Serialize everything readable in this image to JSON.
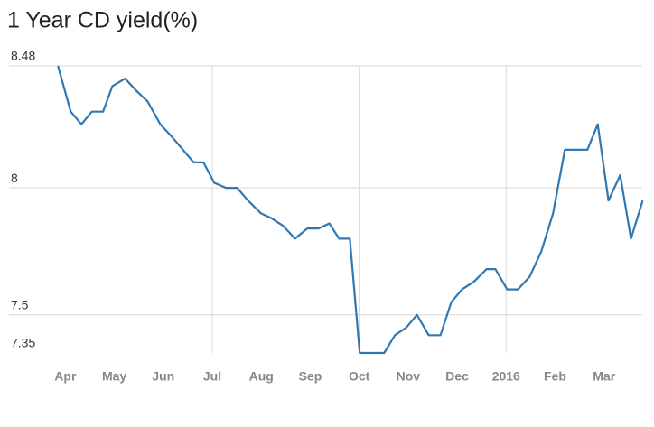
{
  "chart_data": {
    "type": "line",
    "title": "1 Year CD yield(%)",
    "x": [
      -0.15,
      0.11,
      0.33,
      0.54,
      0.77,
      0.96,
      1.22,
      1.46,
      1.68,
      1.94,
      2.18,
      2.4,
      2.62,
      2.82,
      3.04,
      3.28,
      3.51,
      3.73,
      3.99,
      4.21,
      4.45,
      4.69,
      4.94,
      5.17,
      5.39,
      5.59,
      5.81,
      6.01,
      6.25,
      6.51,
      6.73,
      6.96,
      7.18,
      7.42,
      7.66,
      7.88,
      8.1,
      8.34,
      8.6,
      8.78,
      9.02,
      9.24,
      9.48,
      9.72,
      9.96,
      10.2,
      10.42,
      10.66,
      10.87,
      11.09,
      11.33,
      11.55,
      11.79
    ],
    "values": [
      8.48,
      8.3,
      8.25,
      8.3,
      8.3,
      8.4,
      8.43,
      8.38,
      8.34,
      8.25,
      8.2,
      8.15,
      8.1,
      8.1,
      8.02,
      8.0,
      8.0,
      7.95,
      7.9,
      7.88,
      7.85,
      7.8,
      7.84,
      7.84,
      7.86,
      7.8,
      7.8,
      7.35,
      7.35,
      7.35,
      7.42,
      7.45,
      7.5,
      7.42,
      7.42,
      7.55,
      7.6,
      7.63,
      7.68,
      7.68,
      7.6,
      7.6,
      7.65,
      7.75,
      7.9,
      8.15,
      8.15,
      8.15,
      8.25,
      7.95,
      8.05,
      7.8,
      7.95
    ],
    "color": "#2f78b4",
    "xlim": [
      -1.15,
      11.78
    ],
    "xticks": [
      {
        "value": 0,
        "label": "Apr"
      },
      {
        "value": 1,
        "label": "May"
      },
      {
        "value": 2,
        "label": "Jun"
      },
      {
        "value": 3,
        "label": "Jul"
      },
      {
        "value": 4,
        "label": "Aug"
      },
      {
        "value": 5,
        "label": "Sep"
      },
      {
        "value": 6,
        "label": "Oct"
      },
      {
        "value": 7,
        "label": "Nov"
      },
      {
        "value": 8,
        "label": "Dec"
      },
      {
        "value": 9,
        "label": "2016"
      },
      {
        "value": 10,
        "label": "Feb"
      },
      {
        "value": 11,
        "label": "Mar"
      }
    ],
    "ylim": [
      7.35,
      8.48
    ],
    "yticks": [
      7.35,
      7.5,
      8,
      8.48
    ],
    "grid": true
  }
}
